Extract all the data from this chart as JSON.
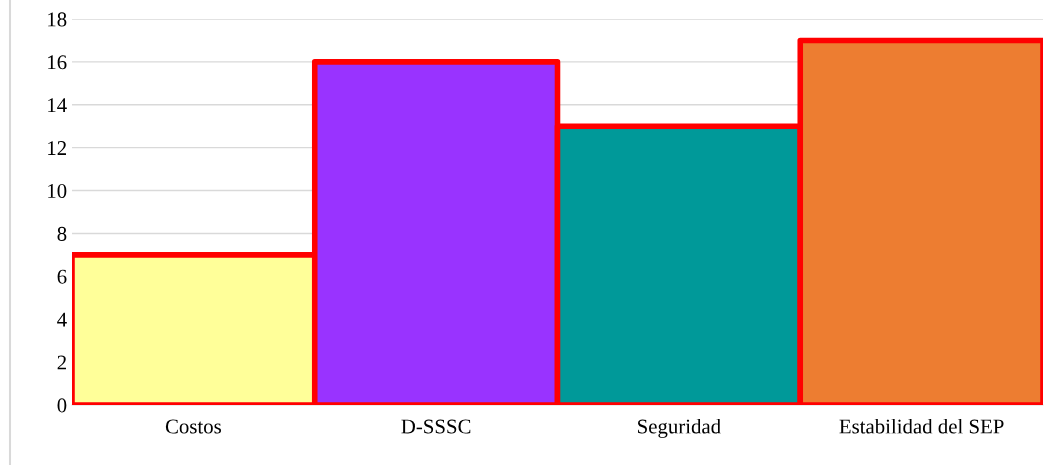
{
  "chart_data": {
    "type": "bar",
    "categories": [
      "Costos",
      "D-SSSC",
      "Seguridad",
      "Estabilidad del SEP"
    ],
    "values": [
      7,
      16,
      13,
      17
    ],
    "colors": [
      "#ffff99",
      "#9933ff",
      "#009999",
      "#ed7d31"
    ],
    "ylim": [
      0,
      18
    ],
    "yticks": [
      0,
      2,
      4,
      6,
      8,
      10,
      12,
      14,
      16,
      18
    ],
    "grid": "y",
    "legend": false
  }
}
